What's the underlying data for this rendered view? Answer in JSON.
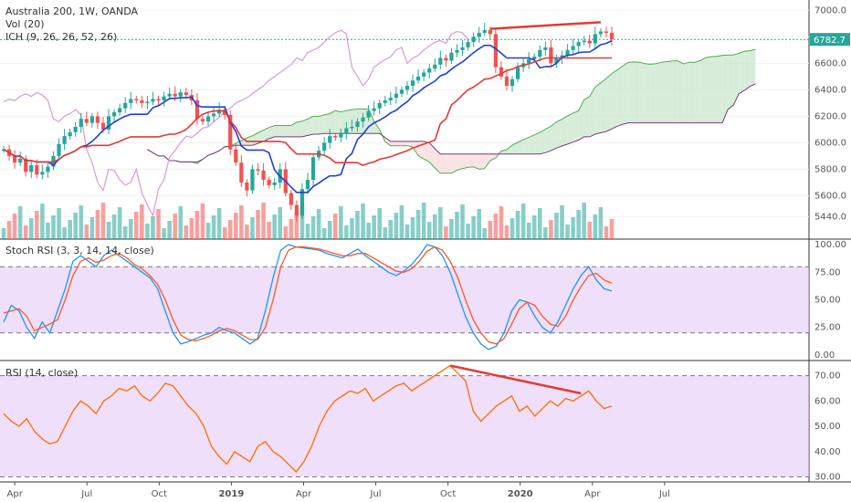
{
  "chart_data": {
    "type": "line",
    "title": "Australia 200, 1W, OANDA",
    "indicators": [
      "Vol (20)",
      "ICH (9, 26, 26, 52, 26)"
    ],
    "current_price": "6782.7",
    "x_ticks": [
      "Apr",
      "Jul",
      "Oct",
      "2019",
      "Apr",
      "Jul",
      "Oct",
      "2020",
      "Apr",
      "Jul"
    ],
    "price_axis_ticks": [
      7000,
      6800,
      6600,
      6400,
      6200,
      6000,
      5800,
      5600,
      5440
    ],
    "price_ylim": [
      5300,
      7050
    ],
    "price_series_ohlc_close_approx": [
      5950,
      5900,
      5850,
      5880,
      5780,
      5830,
      5760,
      5780,
      5820,
      5900,
      5990,
      6050,
      6080,
      6120,
      6180,
      6150,
      6200,
      6150,
      6100,
      6200,
      6230,
      6260,
      6300,
      6330,
      6320,
      6300,
      6310,
      6330,
      6320,
      6350,
      6370,
      6350,
      6380,
      6360,
      6320,
      6180,
      6160,
      6200,
      6220,
      6250,
      6210,
      5950,
      5850,
      5700,
      5640,
      5800,
      5790,
      5720,
      5680,
      5700,
      5800,
      5620,
      5530,
      5450,
      5650,
      5720,
      5890,
      5940,
      6000,
      6050,
      6040,
      6070,
      6110,
      6120,
      6160,
      6190,
      6240,
      6260,
      6300,
      6320,
      6340,
      6370,
      6400,
      6430,
      6470,
      6500,
      6530,
      6560,
      6590,
      6640,
      6620,
      6680,
      6700,
      6720,
      6760,
      6800,
      6830,
      6850,
      6820,
      6570,
      6500,
      6430,
      6480,
      6570,
      6600,
      6630,
      6650,
      6700,
      6720,
      6600,
      6640,
      6660,
      6700,
      6730,
      6760,
      6770,
      6750,
      6820,
      6840,
      6830,
      6780
    ],
    "series": [
      {
        "name": "Stoch RSI (3, 3, 14, 14, close)",
        "ylim": [
          -5,
          105
        ],
        "ticks": [
          100.0,
          75.0,
          50.0,
          25.0,
          0.0
        ],
        "k": [
          30,
          45,
          40,
          25,
          15,
          30,
          20,
          40,
          60,
          85,
          90,
          85,
          80,
          90,
          95,
          90,
          85,
          80,
          75,
          70,
          60,
          40,
          20,
          10,
          12,
          15,
          18,
          20,
          25,
          22,
          20,
          15,
          10,
          15,
          40,
          70,
          95,
          100,
          98,
          97,
          96,
          95,
          92,
          90,
          88,
          92,
          96,
          90,
          85,
          80,
          75,
          72,
          76,
          82,
          90,
          100,
          98,
          90,
          75,
          55,
          35,
          20,
          10,
          5,
          8,
          20,
          40,
          50,
          48,
          35,
          25,
          20,
          30,
          45,
          60,
          72,
          80,
          68,
          60,
          58
        ],
        "d": [
          38,
          40,
          42,
          35,
          22,
          25,
          28,
          32,
          50,
          72,
          85,
          88,
          84,
          86,
          90,
          92,
          88,
          82,
          78,
          72,
          64,
          50,
          32,
          18,
          14,
          13,
          15,
          18,
          22,
          24,
          22,
          18,
          14,
          14,
          25,
          50,
          80,
          95,
          98,
          98,
          97,
          96,
          94,
          92,
          90,
          90,
          92,
          92,
          88,
          84,
          80,
          76,
          75,
          78,
          85,
          94,
          98,
          95,
          85,
          70,
          50,
          32,
          20,
          12,
          10,
          15,
          28,
          42,
          48,
          45,
          35,
          28,
          26,
          35,
          50,
          62,
          72,
          74,
          68,
          65
        ]
      },
      {
        "name": "RSI (14, close)",
        "ylim": [
          28,
          76
        ],
        "ticks": [
          70.0,
          60.0,
          50.0,
          40.0,
          30.0
        ],
        "values": [
          55,
          52,
          50,
          53,
          48,
          45,
          43,
          44,
          50,
          56,
          60,
          58,
          55,
          60,
          62,
          65,
          64,
          66,
          62,
          60,
          63,
          67,
          66,
          62,
          58,
          55,
          50,
          42,
          38,
          35,
          40,
          38,
          36,
          42,
          44,
          40,
          38,
          35,
          32,
          36,
          42,
          50,
          56,
          60,
          62,
          64,
          63,
          65,
          60,
          62,
          64,
          66,
          67,
          64,
          66,
          68,
          70,
          72,
          74,
          71,
          68,
          56,
          52,
          55,
          58,
          60,
          62,
          56,
          58,
          54,
          57,
          60,
          58,
          61,
          60,
          62,
          64,
          60,
          57,
          58
        ]
      }
    ],
    "x_range_weeks": 153,
    "colors": {
      "up": "#26a69a",
      "down": "#ef5350",
      "tenkan": "#1e40d6",
      "kijun": "#e53935",
      "chikou": "#d7a3d7",
      "span_a": "#4caf50",
      "span_b": "#7b3a7b",
      "cloud_up": "#c8e6c9",
      "cloud_down": "#f8d7da",
      "stoch_k": "#2196f3",
      "stoch_d": "#ff5722",
      "rsi": "#ff6d00",
      "band": "#e1c4f5",
      "trendline": "#e53935",
      "last_price_bg": "#26a69a"
    }
  }
}
